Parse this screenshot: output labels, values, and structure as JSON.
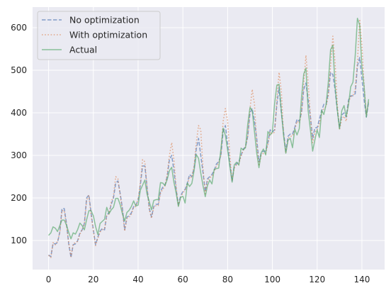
{
  "chart_data": {
    "type": "line",
    "title": "",
    "xlabel": "",
    "ylabel": "",
    "xlim": [
      -7.15,
      150.15
    ],
    "ylim": [
      31.6,
      648.4
    ],
    "xticks": [
      0,
      20,
      40,
      60,
      80,
      100,
      120,
      140
    ],
    "yticks": [
      100,
      200,
      300,
      400,
      500,
      600
    ],
    "grid": true,
    "background": "#eaeaf2",
    "legend_position": "upper-left",
    "series": [
      {
        "name": "No optimization",
        "color": "#4c72b0",
        "style": "dashed",
        "x": [
          0,
          1,
          2,
          3,
          4,
          5,
          6,
          7,
          8,
          9,
          10,
          11,
          12,
          13,
          14,
          15,
          16,
          17,
          18,
          19,
          20,
          21,
          22,
          23,
          24,
          25,
          26,
          27,
          28,
          29,
          30,
          31,
          32,
          33,
          34,
          35,
          36,
          37,
          38,
          39,
          40,
          41,
          42,
          43,
          44,
          45,
          46,
          47,
          48,
          49,
          50,
          51,
          52,
          53,
          54,
          55,
          56,
          57,
          58,
          59,
          60,
          61,
          62,
          63,
          64,
          65,
          66,
          67,
          68,
          69,
          70,
          71,
          72,
          73,
          74,
          75,
          76,
          77,
          78,
          79,
          80,
          81,
          82,
          83,
          84,
          85,
          86,
          87,
          88,
          89,
          90,
          91,
          92,
          93,
          94,
          95,
          96,
          97,
          98,
          99,
          100,
          101,
          102,
          103,
          104,
          105,
          106,
          107,
          108,
          109,
          110,
          111,
          112,
          113,
          114,
          115,
          116,
          117,
          118,
          119,
          120,
          121,
          122,
          123,
          124,
          125,
          126,
          127,
          128,
          129,
          130,
          131,
          132,
          133,
          134,
          135,
          136,
          137,
          138,
          139,
          140,
          141,
          142,
          143
        ],
        "values": [
          66,
          62,
          93,
          92,
          95,
          120,
          175,
          175,
          140,
          92,
          60,
          90,
          92,
          100,
          118,
          125,
          140,
          200,
          207,
          165,
          125,
          90,
          108,
          122,
          128,
          125,
          160,
          165,
          185,
          200,
          235,
          240,
          210,
          175,
          125,
          155,
          158,
          165,
          180,
          183,
          195,
          230,
          275,
          275,
          225,
          175,
          155,
          180,
          185,
          185,
          215,
          225,
          230,
          250,
          290,
          300,
          265,
          220,
          185,
          205,
          215,
          220,
          235,
          255,
          250,
          270,
          315,
          340,
          300,
          260,
          215,
          245,
          250,
          255,
          265,
          280,
          285,
          300,
          355,
          370,
          325,
          280,
          240,
          275,
          280,
          285,
          300,
          315,
          320,
          345,
          400,
          410,
          380,
          340,
          285,
          305,
          310,
          310,
          330,
          360,
          355,
          360,
          420,
          460,
          400,
          355,
          310,
          345,
          350,
          350,
          365,
          385,
          380,
          400,
          455,
          470,
          430,
          390,
          340,
          365,
          365,
          385,
          405,
          420,
          420,
          445,
          495,
          490,
          455,
          405,
          365,
          395,
          400,
          390,
          430,
          440,
          440,
          445,
          510,
          530,
          480,
          430,
          390,
          425
        ]
      },
      {
        "name": "With optimization",
        "color": "#dd8452",
        "style": "dotted",
        "x": [
          0,
          1,
          2,
          3,
          4,
          5,
          6,
          7,
          8,
          9,
          10,
          11,
          12,
          13,
          14,
          15,
          16,
          17,
          18,
          19,
          20,
          21,
          22,
          23,
          24,
          25,
          26,
          27,
          28,
          29,
          30,
          31,
          32,
          33,
          34,
          35,
          36,
          37,
          38,
          39,
          40,
          41,
          42,
          43,
          44,
          45,
          46,
          47,
          48,
          49,
          50,
          51,
          52,
          53,
          54,
          55,
          56,
          57,
          58,
          59,
          60,
          61,
          62,
          63,
          64,
          65,
          66,
          67,
          68,
          69,
          70,
          71,
          72,
          73,
          74,
          75,
          76,
          77,
          78,
          79,
          80,
          81,
          82,
          83,
          84,
          85,
          86,
          87,
          88,
          89,
          90,
          91,
          92,
          93,
          94,
          95,
          96,
          97,
          98,
          99,
          100,
          101,
          102,
          103,
          104,
          105,
          106,
          107,
          108,
          109,
          110,
          111,
          112,
          113,
          114,
          115,
          116,
          117,
          118,
          119,
          120,
          121,
          122,
          123,
          124,
          125,
          126,
          127,
          128,
          129,
          130,
          131,
          132,
          133,
          134,
          135,
          136,
          137,
          138,
          139,
          140,
          141,
          142,
          143
        ],
        "values": [
          65,
          60,
          95,
          90,
          98,
          118,
          170,
          170,
          135,
          95,
          62,
          92,
          95,
          98,
          115,
          125,
          138,
          195,
          205,
          160,
          122,
          88,
          105,
          120,
          125,
          128,
          158,
          162,
          190,
          205,
          250,
          245,
          205,
          170,
          122,
          152,
          155,
          162,
          178,
          180,
          198,
          235,
          290,
          285,
          225,
          172,
          152,
          178,
          182,
          182,
          212,
          220,
          228,
          255,
          300,
          330,
          290,
          225,
          182,
          200,
          212,
          218,
          232,
          250,
          248,
          275,
          330,
          370,
          360,
          270,
          210,
          240,
          248,
          250,
          262,
          275,
          282,
          300,
          380,
          410,
          380,
          300,
          240,
          270,
          278,
          280,
          298,
          312,
          320,
          345,
          410,
          455,
          420,
          330,
          275,
          300,
          305,
          305,
          325,
          355,
          350,
          355,
          430,
          495,
          450,
          350,
          305,
          340,
          345,
          345,
          360,
          380,
          375,
          400,
          470,
          535,
          470,
          390,
          330,
          355,
          360,
          375,
          398,
          410,
          415,
          440,
          510,
          580,
          520,
          420,
          360,
          385,
          392,
          380,
          425,
          438,
          440,
          455,
          520,
          620,
          560,
          460,
          395,
          430
        ]
      },
      {
        "name": "Actual",
        "color": "#55a868",
        "style": "solid",
        "x": [
          0,
          1,
          2,
          3,
          4,
          5,
          6,
          7,
          8,
          9,
          10,
          11,
          12,
          13,
          14,
          15,
          16,
          17,
          18,
          19,
          20,
          21,
          22,
          23,
          24,
          25,
          26,
          27,
          28,
          29,
          30,
          31,
          32,
          33,
          34,
          35,
          36,
          37,
          38,
          39,
          40,
          41,
          42,
          43,
          44,
          45,
          46,
          47,
          48,
          49,
          50,
          51,
          52,
          53,
          54,
          55,
          56,
          57,
          58,
          59,
          60,
          61,
          62,
          63,
          64,
          65,
          66,
          67,
          68,
          69,
          70,
          71,
          72,
          73,
          74,
          75,
          76,
          77,
          78,
          79,
          80,
          81,
          82,
          83,
          84,
          85,
          86,
          87,
          88,
          89,
          90,
          91,
          92,
          93,
          94,
          95,
          96,
          97,
          98,
          99,
          100,
          101,
          102,
          103,
          104,
          105,
          106,
          107,
          108,
          109,
          110,
          111,
          112,
          113,
          114,
          115,
          116,
          117,
          118,
          119,
          120,
          121,
          122,
          123,
          124,
          125,
          126,
          127,
          128,
          129,
          130,
          131,
          132,
          133,
          134,
          135,
          136,
          137,
          138,
          139,
          140,
          141,
          142,
          143
        ],
        "values": [
          112,
          118,
          132,
          129,
          121,
          135,
          148,
          148,
          136,
          119,
          104,
          118,
          115,
          126,
          141,
          135,
          125,
          149,
          170,
          170,
          158,
          133,
          114,
          140,
          145,
          150,
          178,
          163,
          172,
          178,
          199,
          199,
          184,
          162,
          146,
          166,
          171,
          180,
          193,
          181,
          183,
          218,
          230,
          242,
          209,
          191,
          172,
          194,
          196,
          196,
          236,
          235,
          229,
          243,
          264,
          272,
          237,
          211,
          180,
          201,
          204,
          188,
          235,
          227,
          234,
          264,
          302,
          293,
          259,
          229,
          203,
          229,
          242,
          233,
          267,
          269,
          270,
          315,
          364,
          347,
          312,
          274,
          237,
          278,
          284,
          277,
          317,
          313,
          318,
          374,
          413,
          405,
          355,
          306,
          271,
          306,
          315,
          301,
          356,
          348,
          355,
          422,
          465,
          467,
          404,
          347,
          305,
          336,
          340,
          318,
          362,
          348,
          363,
          435,
          491,
          505,
          404,
          359,
          310,
          337,
          360,
          342,
          406,
          396,
          420,
          472,
          548,
          559,
          463,
          407,
          362,
          405,
          417,
          391,
          419,
          461,
          472,
          535,
          622,
          606,
          508,
          461,
          390,
          432
        ]
      }
    ]
  }
}
